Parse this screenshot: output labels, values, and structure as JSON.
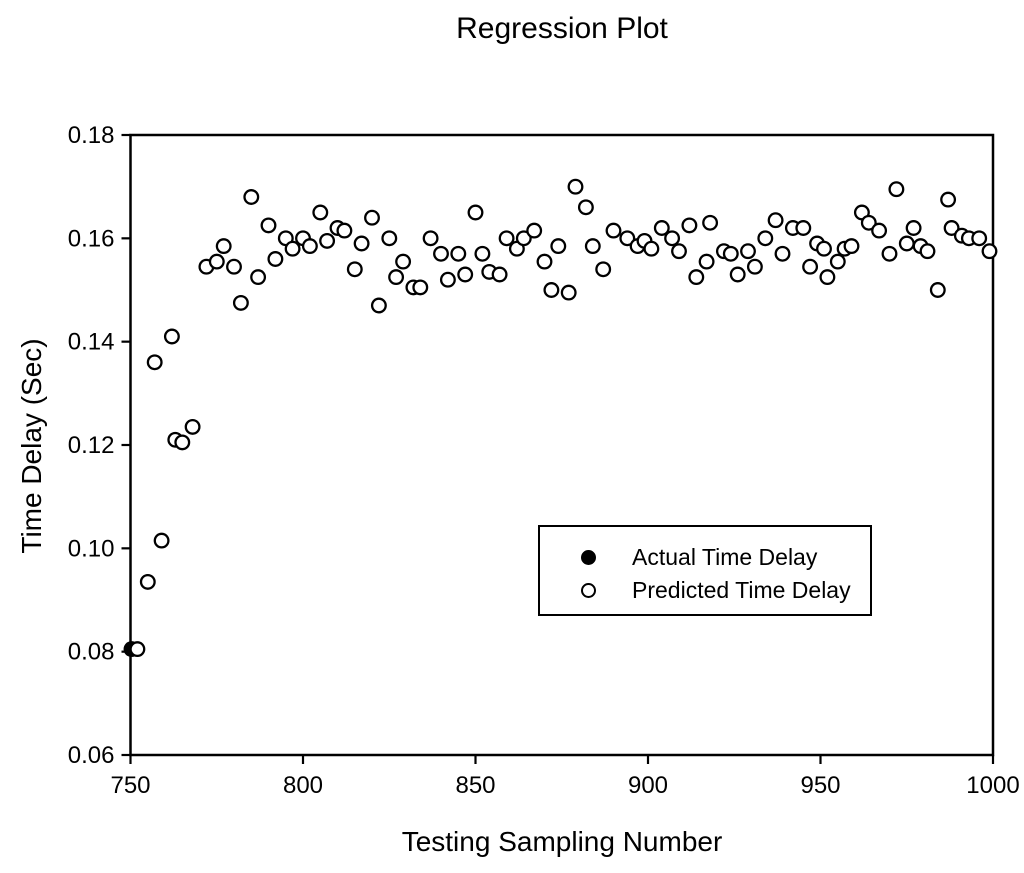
{
  "figure": {
    "title": "Regression Plot",
    "background_color": "#ffffff",
    "foreground_color": "#000000"
  },
  "legend": {
    "entries": [
      {
        "label": "Actual Time Delay",
        "marker": "filled-circle"
      },
      {
        "label": "Predicted Time Delay",
        "marker": "open-circle"
      }
    ],
    "position": "inside-right-center",
    "border": true
  },
  "chart_data": {
    "type": "scatter",
    "title": "Regression Plot",
    "xlabel": "Testing Sampling Number",
    "ylabel": "Time Delay (Sec)",
    "xlim": [
      750,
      1000
    ],
    "ylim": [
      0.06,
      0.18
    ],
    "grid": false,
    "x_ticks": [
      {
        "value": 750,
        "label": "750"
      },
      {
        "value": 800,
        "label": "800"
      },
      {
        "value": 850,
        "label": "850"
      },
      {
        "value": 900,
        "label": "900"
      },
      {
        "value": 950,
        "label": "950"
      },
      {
        "value": 1000,
        "label": "1000"
      }
    ],
    "y_ticks": [
      {
        "value": 0.06,
        "label": "0.06"
      },
      {
        "value": 0.08,
        "label": "0.08"
      },
      {
        "value": 0.1,
        "label": "0.10"
      },
      {
        "value": 0.12,
        "label": "0.12"
      },
      {
        "value": 0.14,
        "label": "0.14"
      },
      {
        "value": 0.16,
        "label": "0.16"
      },
      {
        "value": 0.18,
        "label": "0.18"
      }
    ],
    "series": [
      {
        "name": "Actual Time Delay",
        "marker": "filled-circle",
        "points": [
          [
            750.3,
            0.0805
          ]
        ]
      },
      {
        "name": "Predicted Time Delay",
        "marker": "open-circle",
        "points": [
          [
            752,
            0.0805
          ],
          [
            755,
            0.0935
          ],
          [
            757,
            0.136
          ],
          [
            759,
            0.1015
          ],
          [
            762,
            0.141
          ],
          [
            763,
            0.121
          ],
          [
            765,
            0.1205
          ],
          [
            768,
            0.1235
          ],
          [
            772,
            0.1545
          ],
          [
            775,
            0.1555
          ],
          [
            777,
            0.1585
          ],
          [
            780,
            0.1545
          ],
          [
            782,
            0.1475
          ],
          [
            785,
            0.168
          ],
          [
            787,
            0.1525
          ],
          [
            790,
            0.1625
          ],
          [
            792,
            0.156
          ],
          [
            795,
            0.16
          ],
          [
            797,
            0.158
          ],
          [
            800,
            0.16
          ],
          [
            802,
            0.1585
          ],
          [
            805,
            0.165
          ],
          [
            807,
            0.1595
          ],
          [
            810,
            0.162
          ],
          [
            812,
            0.1615
          ],
          [
            815,
            0.154
          ],
          [
            817,
            0.159
          ],
          [
            820,
            0.164
          ],
          [
            822,
            0.147
          ],
          [
            825,
            0.16
          ],
          [
            827,
            0.1525
          ],
          [
            829,
            0.1555
          ],
          [
            832,
            0.1505
          ],
          [
            834,
            0.1505
          ],
          [
            837,
            0.16
          ],
          [
            840,
            0.157
          ],
          [
            842,
            0.152
          ],
          [
            845,
            0.157
          ],
          [
            847,
            0.153
          ],
          [
            850,
            0.165
          ],
          [
            852,
            0.157
          ],
          [
            854,
            0.1535
          ],
          [
            857,
            0.153
          ],
          [
            859,
            0.16
          ],
          [
            862,
            0.158
          ],
          [
            864,
            0.16
          ],
          [
            867,
            0.1615
          ],
          [
            870,
            0.1555
          ],
          [
            872,
            0.15
          ],
          [
            874,
            0.1585
          ],
          [
            877,
            0.1495
          ],
          [
            879,
            0.17
          ],
          [
            882,
            0.166
          ],
          [
            884,
            0.1585
          ],
          [
            887,
            0.154
          ],
          [
            890,
            0.1615
          ],
          [
            894,
            0.16
          ],
          [
            897,
            0.1585
          ],
          [
            899,
            0.1595
          ],
          [
            901,
            0.158
          ],
          [
            904,
            0.162
          ],
          [
            907,
            0.16
          ],
          [
            909,
            0.1575
          ],
          [
            912,
            0.1625
          ],
          [
            914,
            0.1525
          ],
          [
            917,
            0.1555
          ],
          [
            918,
            0.163
          ],
          [
            922,
            0.1575
          ],
          [
            924,
            0.157
          ],
          [
            926,
            0.153
          ],
          [
            929,
            0.1575
          ],
          [
            931,
            0.1545
          ],
          [
            934,
            0.16
          ],
          [
            937,
            0.1635
          ],
          [
            939,
            0.157
          ],
          [
            942,
            0.162
          ],
          [
            945,
            0.162
          ],
          [
            947,
            0.1545
          ],
          [
            949,
            0.159
          ],
          [
            951,
            0.158
          ],
          [
            952,
            0.1525
          ],
          [
            955,
            0.1555
          ],
          [
            957,
            0.158
          ],
          [
            959,
            0.1585
          ],
          [
            962,
            0.165
          ],
          [
            964,
            0.163
          ],
          [
            967,
            0.1615
          ],
          [
            970,
            0.157
          ],
          [
            972,
            0.1695
          ],
          [
            975,
            0.159
          ],
          [
            977,
            0.162
          ],
          [
            979,
            0.1585
          ],
          [
            981,
            0.1575
          ],
          [
            984,
            0.15
          ],
          [
            987,
            0.1675
          ],
          [
            988,
            0.162
          ],
          [
            991,
            0.1605
          ],
          [
            993,
            0.16
          ],
          [
            996,
            0.16
          ],
          [
            999,
            0.1575
          ]
        ]
      }
    ]
  }
}
